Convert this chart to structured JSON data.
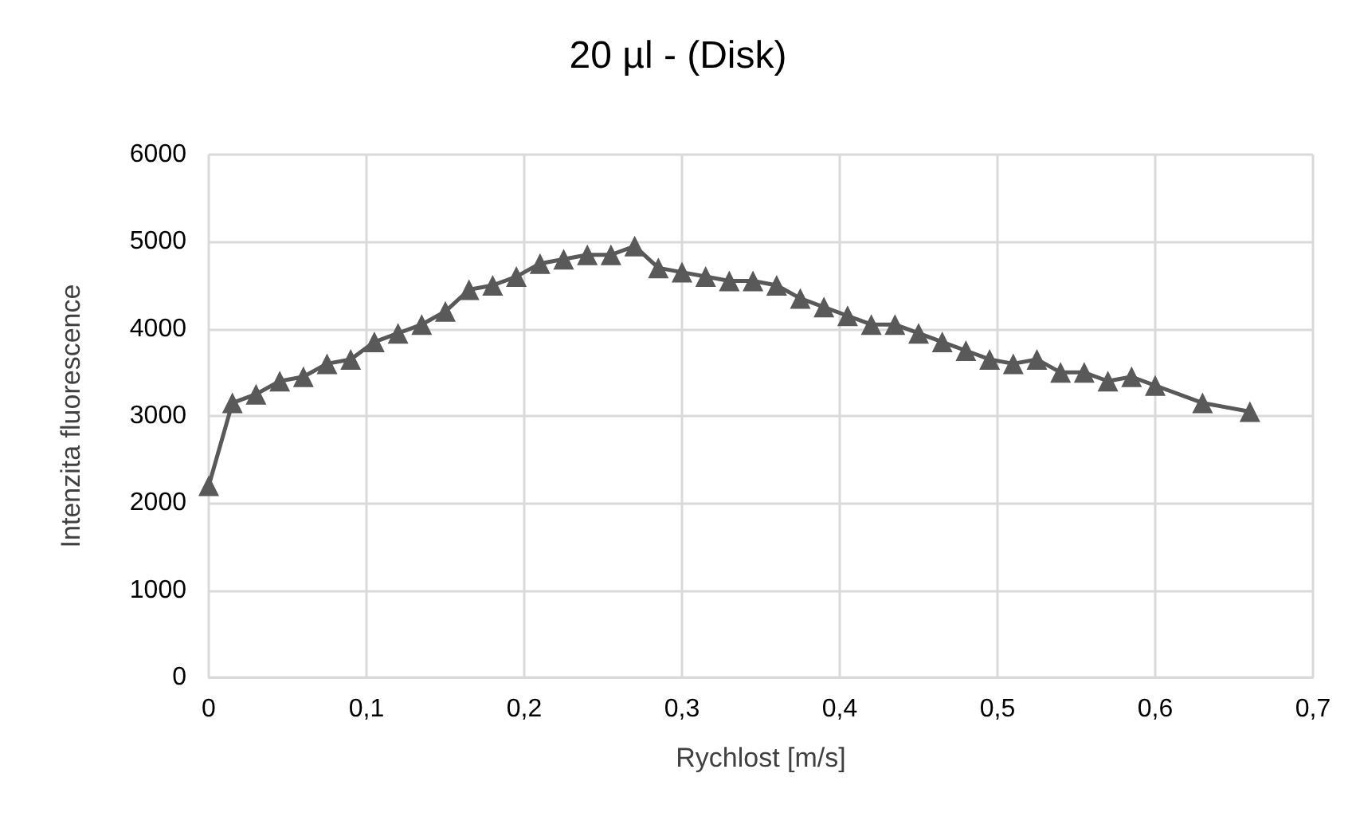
{
  "chart_data": {
    "type": "line",
    "title": "20 µl - (Disk)",
    "xlabel": "Rychlost [m/s]",
    "ylabel": "Intenzita fluorescence",
    "x": [
      0,
      0.015,
      0.03,
      0.045,
      0.06,
      0.075,
      0.09,
      0.105,
      0.12,
      0.135,
      0.15,
      0.165,
      0.18,
      0.195,
      0.21,
      0.225,
      0.24,
      0.255,
      0.27,
      0.285,
      0.3,
      0.315,
      0.33,
      0.345,
      0.36,
      0.375,
      0.39,
      0.405,
      0.42,
      0.435,
      0.45,
      0.465,
      0.48,
      0.495,
      0.51,
      0.525,
      0.54,
      0.555,
      0.57,
      0.585,
      0.6,
      0.63,
      0.66
    ],
    "series": [
      {
        "color": "#595959",
        "values": [
          2200,
          3150,
          3250,
          3400,
          3450,
          3600,
          3650,
          3850,
          3950,
          4050,
          4200,
          4450,
          4500,
          4600,
          4750,
          4800,
          4850,
          4850,
          4950,
          4700,
          4650,
          4600,
          4550,
          4550,
          4500,
          4350,
          4250,
          4150,
          4050,
          4050,
          3950,
          3850,
          3750,
          3650,
          3600,
          3650,
          3500,
          3500,
          3400,
          3450,
          3350,
          3150,
          3050
        ]
      }
    ],
    "xlim": [
      0,
      0.7
    ],
    "xticks": [
      {
        "value": 0,
        "label": "0"
      },
      {
        "value": 0.1,
        "label": "0,1"
      },
      {
        "value": 0.2,
        "label": "0,2"
      },
      {
        "value": 0.3,
        "label": "0,3"
      },
      {
        "value": 0.4,
        "label": "0,4"
      },
      {
        "value": 0.5,
        "label": "0,5"
      },
      {
        "value": 0.6,
        "label": "0,6"
      },
      {
        "value": 0.7,
        "label": "0,7"
      }
    ],
    "ylim": [
      0,
      6000
    ],
    "yticks": [
      0,
      1000,
      2000,
      3000,
      4000,
      5000,
      6000
    ],
    "grid": true,
    "marker": "triangle",
    "line_style": "solid"
  }
}
